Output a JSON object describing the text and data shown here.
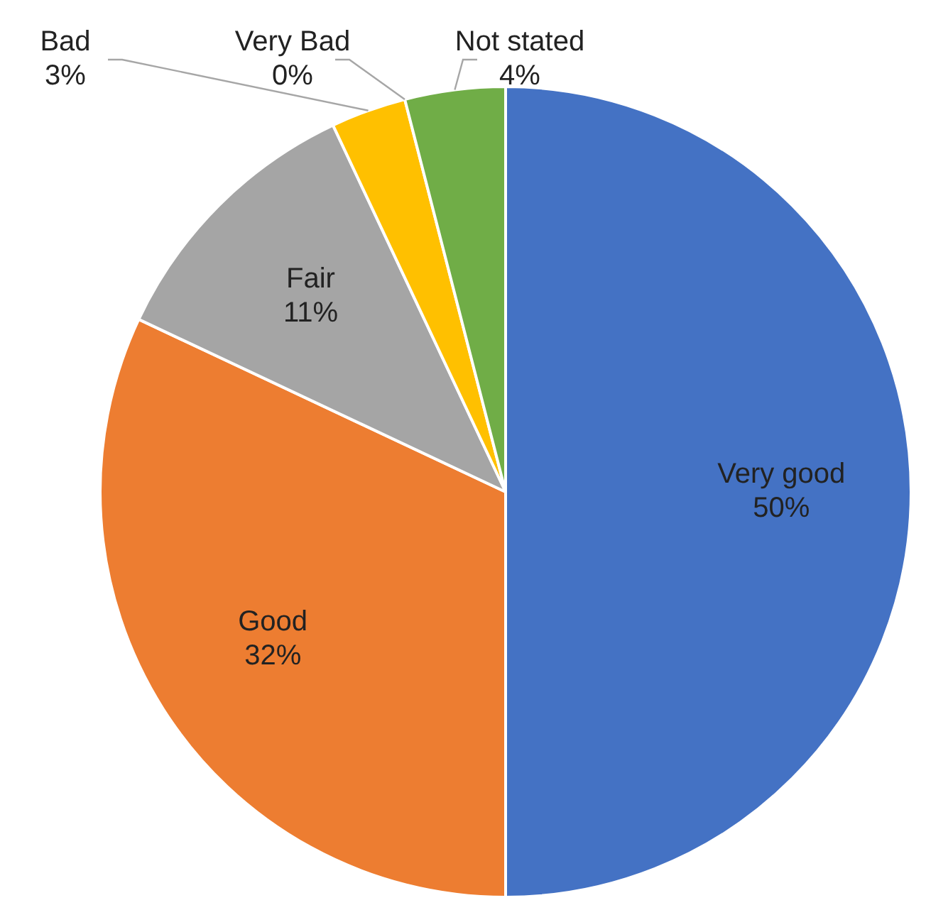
{
  "chart_data": {
    "type": "pie",
    "categories": [
      "Very good",
      "Good",
      "Fair",
      "Bad",
      "Very Bad",
      "Not stated"
    ],
    "values": [
      50,
      32,
      11,
      3,
      0,
      4
    ],
    "colors": [
      "#4472c4",
      "#ed7d31",
      "#a5a5a5",
      "#ffc000",
      "#5b9bd5",
      "#70ad47"
    ],
    "value_labels": [
      "50%",
      "32%",
      "11%",
      "3%",
      "0%",
      "4%"
    ],
    "legend": false
  }
}
